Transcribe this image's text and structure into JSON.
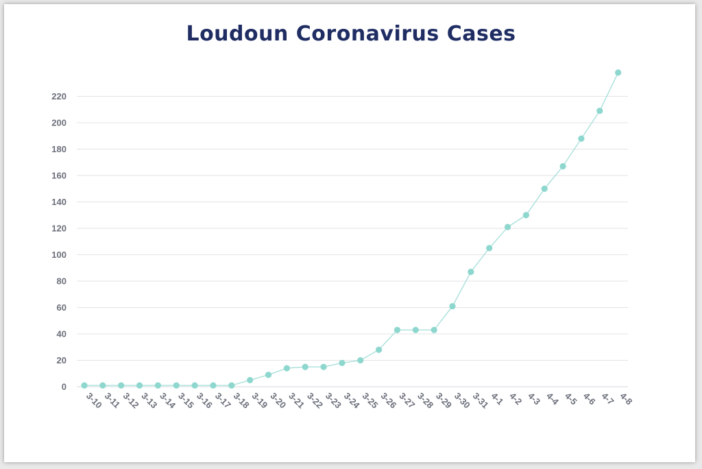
{
  "chart_data": {
    "type": "line",
    "title": "Loudoun Coronavirus Cases",
    "xlabel": "",
    "ylabel": "",
    "categories": [
      "3-10",
      "3-11",
      "3-12",
      "3-13",
      "3-14",
      "3-15",
      "3-16",
      "3-17",
      "3-18",
      "3-19",
      "3-20",
      "3-21",
      "3-22",
      "3-23",
      "3-24",
      "3-25",
      "3-26",
      "3-27",
      "3-28",
      "3-29",
      "3-30",
      "3-31",
      "4-1",
      "4-2",
      "4-3",
      "4-4",
      "4-5",
      "4-6",
      "4-7",
      "4-8"
    ],
    "series": [
      {
        "values": [
          1,
          1,
          1,
          1,
          1,
          1,
          1,
          1,
          1,
          5,
          9,
          14,
          15,
          15,
          18,
          20,
          28,
          43,
          43,
          43,
          61,
          87,
          105,
          121,
          130,
          150,
          167,
          188,
          209,
          238
        ]
      }
    ],
    "ylim": [
      0,
      230
    ],
    "yticks": [
      0,
      20,
      40,
      60,
      80,
      100,
      120,
      140,
      160,
      180,
      200,
      220
    ],
    "grid": true,
    "legend": "none",
    "colors": {
      "line": "#a9e0da",
      "marker": "#8ed7cf",
      "grid": "#e3e3e3",
      "title": "#1f2d63",
      "ticks": "#6b6f7a"
    }
  }
}
